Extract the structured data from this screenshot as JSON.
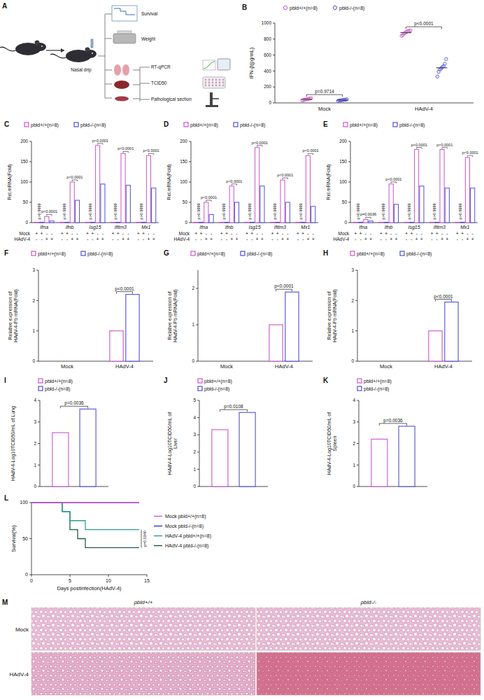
{
  "diagram": {
    "panel": "A",
    "labels": [
      "Nasal drip",
      "Survival",
      "Weight",
      "RT-qPCR",
      "TCID50",
      "Pathological section"
    ]
  },
  "chart_data": [
    {
      "panel": "B",
      "type": "dot",
      "ylabel": "IFN-β(pg/mL)",
      "categories": [
        "Mock",
        "HAdV-4"
      ],
      "series": [
        {
          "name": "pbld+/+(n=8)",
          "color": "#cc55cc",
          "values": [
            45,
            880
          ],
          "points": [
            [
              30,
              35,
              40,
              45,
              45,
              50,
              55,
              60
            ],
            [
              840,
              850,
              870,
              880,
              890,
              900,
              900,
              910
            ]
          ]
        },
        {
          "name": "pbld-/-(n=8)",
          "color": "#4f4fd9",
          "values": [
            35,
            440
          ],
          "points": [
            [
              25,
              30,
              30,
              35,
              35,
              40,
              40,
              45
            ],
            [
              330,
              390,
              420,
              430,
              450,
              460,
              490,
              550
            ]
          ]
        }
      ],
      "p_values": [
        "p=0.9714",
        "p<0.0001"
      ],
      "ylim": [
        0,
        1000
      ],
      "yticks": [
        0,
        200,
        400,
        600,
        800,
        1000
      ],
      "legend": "top"
    },
    {
      "panel": "C",
      "type": "bar",
      "ylabel": "Rel.mRNA(Fold)",
      "categories": [
        "Ifna",
        "Ifnb",
        "Isg15",
        "Ifitm3",
        "Mx1"
      ],
      "sign_rows": [
        {
          "label": "Mock",
          "signs": [
            "+",
            "+",
            "-",
            "-"
          ]
        },
        {
          "label": "HAdV-4",
          "signs": [
            "-",
            "-",
            "+",
            "+"
          ]
        }
      ],
      "series": [
        {
          "name": "pbld+/+(n=8)",
          "color": "#cc55cc",
          "values": [
            [
              1,
              15
            ],
            [
              1,
              100
            ],
            [
              1,
              190
            ],
            [
              1,
              170
            ],
            [
              1,
              165
            ]
          ]
        },
        {
          "name": "pbld-/-(n=8)",
          "color": "#4f4fd9",
          "values": [
            [
              1,
              4
            ],
            [
              1,
              55
            ],
            [
              1,
              95
            ],
            [
              1,
              92
            ],
            [
              1,
              85
            ]
          ]
        }
      ],
      "p_values": [
        [
          "p>0.9999",
          "p<0.0001"
        ],
        [
          "p>0.9999",
          "p<0.0001"
        ],
        [
          "p>0.9999",
          "p<0.0001"
        ],
        [
          "p>0.9999",
          "p<0.0001"
        ],
        [
          "p>0.9999",
          "p<0.0001"
        ]
      ],
      "ylim": [
        0,
        200
      ],
      "yticks": [
        0,
        50,
        100,
        150,
        200
      ],
      "legend": "top"
    },
    {
      "panel": "D",
      "type": "bar",
      "ylabel": "Rel.mRNA(Fold)",
      "categories": [
        "Ifna",
        "Ifnb",
        "Isg15",
        "Ifitm3",
        "Mx1"
      ],
      "sign_rows": [
        {
          "label": "Mock",
          "signs": [
            "+",
            "+",
            "-",
            "-"
          ]
        },
        {
          "label": "HAdV-4",
          "signs": [
            "-",
            "-",
            "+",
            "+"
          ]
        }
      ],
      "series": [
        {
          "name": "pbld+/+(n=8)",
          "color": "#cc55cc",
          "values": [
            [
              1,
              50
            ],
            [
              1,
              90
            ],
            [
              1,
              185
            ],
            [
              1,
              105
            ],
            [
              1,
              165
            ]
          ]
        },
        {
          "name": "pbld-/-(n=8)",
          "color": "#4f4fd9",
          "values": [
            [
              1,
              20
            ],
            [
              1,
              50
            ],
            [
              1,
              90
            ],
            [
              1,
              50
            ],
            [
              1,
              40
            ]
          ]
        }
      ],
      "p_values": [
        [
          "p>0.9999",
          "p<0.0001"
        ],
        [
          "p>0.9999",
          "p<0.0001"
        ],
        [
          "p>0.9999",
          "p<0.0001"
        ],
        [
          "p>0.9999",
          "p<0.0001"
        ],
        [
          "p>0.9999",
          "p<0.0001"
        ]
      ],
      "ylim": [
        0,
        200
      ],
      "yticks": [
        0,
        50,
        100,
        150,
        200
      ],
      "legend": "top"
    },
    {
      "panel": "E",
      "type": "bar",
      "ylabel": "Rel.mRNA(Fold)",
      "categories": [
        "Ifna",
        "Ifnb",
        "Isg15",
        "Ifitm3",
        "Mx1"
      ],
      "sign_rows": [
        {
          "label": "Mock",
          "signs": [
            "+",
            "+",
            "-",
            "-"
          ]
        },
        {
          "label": "HAdV-4",
          "signs": [
            "-",
            "-",
            "+",
            "+"
          ]
        }
      ],
      "series": [
        {
          "name": "pbld+/+(n=8)",
          "color": "#cc55cc",
          "values": [
            [
              1,
              8
            ],
            [
              1,
              95
            ],
            [
              1,
              180
            ],
            [
              1,
              180
            ],
            [
              1,
              160
            ]
          ]
        },
        {
          "name": "pbld-/-(n=8)",
          "color": "#4f4fd9",
          "values": [
            [
              1,
              4
            ],
            [
              1,
              45
            ],
            [
              1,
              90
            ],
            [
              1,
              85
            ],
            [
              1,
              85
            ]
          ]
        }
      ],
      "p_values": [
        [
          "p>0.9999",
          "p=0.0036"
        ],
        [
          "p>0.9999",
          "p<0.0001"
        ],
        [
          "p>0.9999",
          "p<0.0001"
        ],
        [
          "p>0.9999",
          "p<0.0001"
        ],
        [
          "p>0.9999",
          "p<0.0001"
        ]
      ],
      "ylim": [
        0,
        200
      ],
      "yticks": [
        0,
        50,
        100,
        150,
        200
      ],
      "legend": "top"
    },
    {
      "panel": "F",
      "type": "bar",
      "ylabel": "Relative expression of HAdV-4-Pb mRNA(Fold)",
      "categories": [
        "Mock",
        "HAdV-4"
      ],
      "series": [
        {
          "name": "pbld+/+(n=8)",
          "color": "#cc55cc",
          "values": [
            0,
            1
          ]
        },
        {
          "name": "pbld-/-(n=8)",
          "color": "#4f4fd9",
          "values": [
            0,
            2.2
          ]
        }
      ],
      "p_values": [
        null,
        "p<0.0001"
      ],
      "ylim": [
        0,
        3
      ],
      "yticks": [
        0,
        1,
        2,
        3
      ],
      "legend": "top"
    },
    {
      "panel": "G",
      "type": "bar",
      "ylabel": "Relative expression of HAdV-4-Pb mRNA(Fold)",
      "categories": [
        "Mock",
        "HAdV-4"
      ],
      "series": [
        {
          "name": "pbld+/+(n=8)",
          "color": "#cc55cc",
          "values": [
            0,
            1
          ]
        },
        {
          "name": "pbld-/-(n=8)",
          "color": "#4f4fd9",
          "values": [
            0,
            1.9
          ]
        }
      ],
      "p_values": [
        null,
        "p<0.0001"
      ],
      "ylim": [
        0,
        2.5
      ],
      "yticks": [
        0,
        1,
        2
      ],
      "legend": "top"
    },
    {
      "panel": "H",
      "type": "bar",
      "ylabel": "Relative expression of HAdV-4-Pb mRNA(Fold)",
      "categories": [
        "Mock",
        "HAdV-4"
      ],
      "series": [
        {
          "name": "pbld+/+(n=8)",
          "color": "#cc55cc",
          "values": [
            0,
            1
          ]
        },
        {
          "name": "pbld-/-(n=8)",
          "color": "#4f4fd9",
          "values": [
            0,
            1.95
          ]
        }
      ],
      "p_values": [
        null,
        "p<0.0001"
      ],
      "ylim": [
        0,
        3
      ],
      "yticks": [
        0,
        1,
        2,
        3
      ],
      "legend": "top"
    },
    {
      "panel": "I",
      "type": "bar",
      "ylabel": "HAdV-4-Log10TCID50/mL of Lung",
      "categories": [
        null
      ],
      "series": [
        {
          "name": "pbld+/+(n=8)",
          "color": "#cc55cc",
          "values": [
            2.5
          ]
        },
        {
          "name": "pbld-/-(n=8)",
          "color": "#4f4fd9",
          "values": [
            3.6
          ]
        }
      ],
      "p_values": [
        "p=0.0036"
      ],
      "ylim": [
        0,
        4
      ],
      "yticks": [
        0,
        1,
        2,
        3,
        4
      ],
      "legend": "top-left"
    },
    {
      "panel": "J",
      "type": "bar",
      "ylabel": "HAdV-4-Log10TCID50/mL of Liver",
      "categories": [
        null
      ],
      "series": [
        {
          "name": "pbld+/+(n=8)",
          "color": "#cc55cc",
          "values": [
            3.3
          ]
        },
        {
          "name": "pbld-/-(n=8)",
          "color": "#4f4fd9",
          "values": [
            4.3
          ]
        }
      ],
      "p_values": [
        "p=0.0108"
      ],
      "ylim": [
        0,
        5
      ],
      "yticks": [
        0,
        1,
        2,
        3,
        4,
        5
      ],
      "legend": "top-left"
    },
    {
      "panel": "K",
      "type": "bar",
      "ylabel": "HAdV-4-Log10TCID50/mL of Spleen",
      "categories": [
        null
      ],
      "series": [
        {
          "name": "pbld+/+(n=8)",
          "color": "#cc55cc",
          "values": [
            2.2
          ]
        },
        {
          "name": "pbld-/-(n=8)",
          "color": "#4f4fd9",
          "values": [
            2.8
          ]
        }
      ],
      "p_values": [
        "p=0.0036"
      ],
      "ylim": [
        0,
        4
      ],
      "yticks": [
        0,
        1,
        2,
        3,
        4
      ],
      "legend": "top-left"
    },
    {
      "panel": "L",
      "type": "line",
      "line_style": "step",
      "xlabel": "Days postinfection(HAdV-4)",
      "ylabel": "Survival(%)",
      "xlim": [
        0,
        15
      ],
      "xticks": [
        0,
        5,
        10,
        15
      ],
      "ylim": [
        0,
        100
      ],
      "yticks": [
        0,
        50,
        100
      ],
      "series": [
        {
          "name": "Mock pbld+/+(n=8)",
          "color": "#d060d0",
          "x": [
            0,
            14
          ],
          "values": [
            100,
            100
          ]
        },
        {
          "name": "Mock pbld-/-(n=8)",
          "color": "#3a3ad0",
          "x": [
            0,
            14
          ],
          "values": [
            100,
            100
          ]
        },
        {
          "name": "HAdV-4 pbld+/+(n=8)",
          "color": "#2e9e96",
          "x": [
            0,
            4,
            5,
            7,
            14
          ],
          "values": [
            100,
            87.5,
            75,
            62.5,
            62.5
          ]
        },
        {
          "name": "HAdV-4 pbld-/-(n=8)",
          "color": "#1f5e46",
          "x": [
            0,
            4,
            5,
            6,
            7,
            14
          ],
          "values": [
            100,
            87.5,
            62.5,
            50,
            37.5,
            37.5
          ]
        }
      ],
      "p_value": "p=0.0340",
      "legend": "right"
    }
  ],
  "histology": {
    "panel": "M",
    "columns": [
      "pbld+/+",
      "pbld-/-"
    ],
    "rows": [
      "Mock",
      "HAdV-4"
    ]
  }
}
